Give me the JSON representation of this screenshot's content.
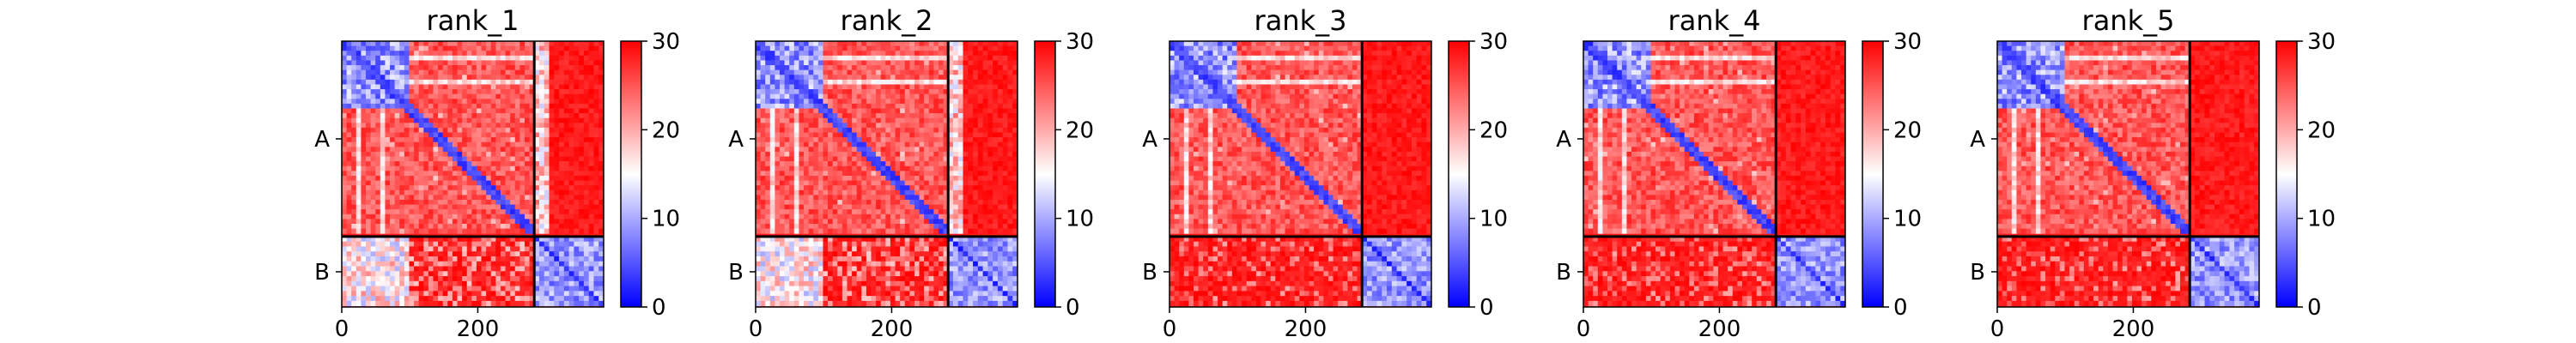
{
  "chart_data": [
    {
      "type": "heatmap",
      "title": "rank_1",
      "x_ticks": [
        0,
        200
      ],
      "xlim": [
        0,
        385
      ],
      "chain_boundary": 283,
      "y_tick_labels": [
        "A",
        "B"
      ],
      "colorbar": {
        "min": 0,
        "max": 30,
        "ticks": [
          0,
          10,
          20,
          30
        ]
      },
      "inter_chain_level": "mixed"
    },
    {
      "type": "heatmap",
      "title": "rank_2",
      "x_ticks": [
        0,
        200
      ],
      "xlim": [
        0,
        385
      ],
      "chain_boundary": 283,
      "y_tick_labels": [
        "A",
        "B"
      ],
      "colorbar": {
        "min": 0,
        "max": 30,
        "ticks": [
          0,
          10,
          20,
          30
        ]
      },
      "inter_chain_level": "mixed"
    },
    {
      "type": "heatmap",
      "title": "rank_3",
      "x_ticks": [
        0,
        200
      ],
      "xlim": [
        0,
        385
      ],
      "chain_boundary": 283,
      "y_tick_labels": [
        "A",
        "B"
      ],
      "colorbar": {
        "min": 0,
        "max": 30,
        "ticks": [
          0,
          10,
          20,
          30
        ]
      },
      "inter_chain_level": "high"
    },
    {
      "type": "heatmap",
      "title": "rank_4",
      "x_ticks": [
        0,
        200
      ],
      "xlim": [
        0,
        385
      ],
      "chain_boundary": 283,
      "y_tick_labels": [
        "A",
        "B"
      ],
      "colorbar": {
        "min": 0,
        "max": 30,
        "ticks": [
          0,
          10,
          20,
          30
        ]
      },
      "inter_chain_level": "high"
    },
    {
      "type": "heatmap",
      "title": "rank_5",
      "x_ticks": [
        0,
        200
      ],
      "xlim": [
        0,
        385
      ],
      "chain_boundary": 283,
      "y_tick_labels": [
        "A",
        "B"
      ],
      "colorbar": {
        "min": 0,
        "max": 30,
        "ticks": [
          0,
          10,
          20,
          30
        ]
      },
      "inter_chain_level": "high"
    }
  ],
  "colors": {
    "low": "#0000ff",
    "mid": "#ffffff",
    "high": "#ff0000",
    "axes": "#000000"
  }
}
